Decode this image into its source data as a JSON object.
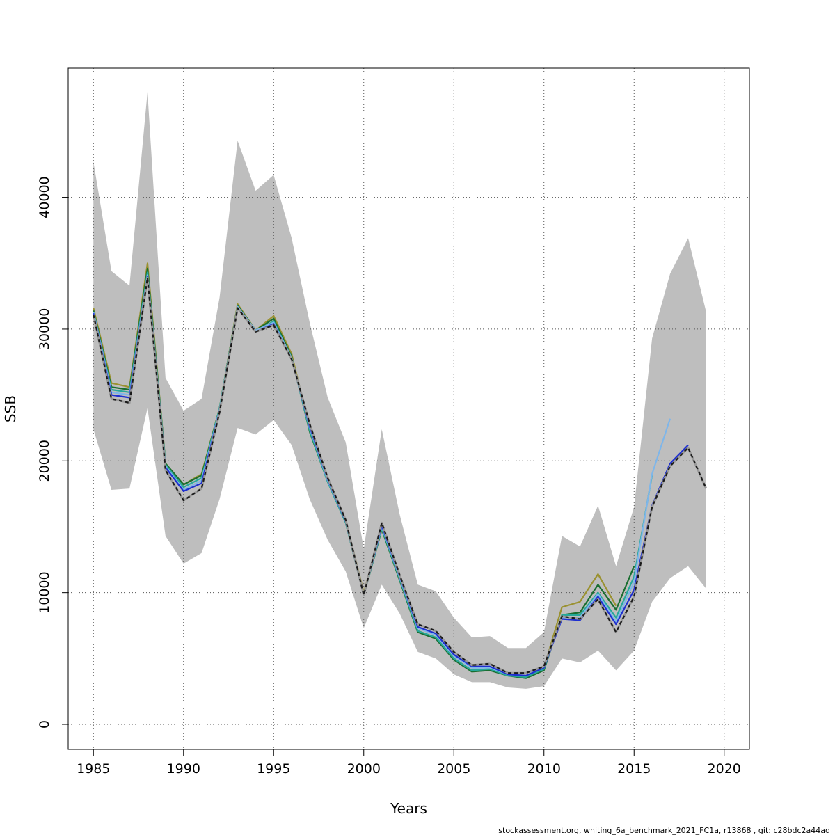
{
  "chart_data": {
    "type": "line",
    "xlabel": "Years",
    "ylabel": "SSB",
    "xlim": [
      1983.6,
      2021.4
    ],
    "ylim": [
      -1900,
      49800
    ],
    "xticks": [
      1985,
      1990,
      1995,
      2000,
      2005,
      2010,
      2015,
      2020
    ],
    "yticks": [
      0,
      10000,
      20000,
      30000,
      40000
    ],
    "grid": true,
    "band": {
      "x": [
        1985,
        1986,
        1987,
        1988,
        1989,
        1990,
        1991,
        1992,
        1993,
        1994,
        1995,
        1996,
        1997,
        1998,
        1999,
        2000,
        2001,
        2002,
        2003,
        2004,
        2005,
        2006,
        2007,
        2008,
        2009,
        2010,
        2011,
        2012,
        2013,
        2014,
        2015,
        2016,
        2017,
        2018,
        2019
      ],
      "lower": [
        22400,
        17800,
        17900,
        24000,
        14300,
        12200,
        13000,
        17100,
        22500,
        22000,
        23100,
        21200,
        17100,
        14000,
        11600,
        7300,
        10600,
        8400,
        5500,
        5000,
        3800,
        3200,
        3200,
        2800,
        2700,
        2900,
        5000,
        4700,
        5600,
        4100,
        5600,
        9300,
        11100,
        12000,
        10300
      ],
      "upper": [
        42700,
        34400,
        33300,
        48000,
        26300,
        23800,
        24700,
        32400,
        44300,
        40500,
        41700,
        36900,
        30500,
        24800,
        21400,
        13300,
        22400,
        15900,
        10600,
        10100,
        8100,
        6600,
        6700,
        5800,
        5800,
        7000,
        14300,
        13500,
        16600,
        12000,
        16500,
        29300,
        34200,
        36900,
        31300
      ],
      "color": "#bebebe"
    },
    "series": [
      {
        "color": "#1a1a1a",
        "dashed": true,
        "x": [
          1985,
          1986,
          1987,
          1988,
          1989,
          1990,
          1991,
          1992,
          1993,
          1994,
          1995,
          1996,
          1997,
          1998,
          1999,
          2000,
          2001,
          2002,
          2003,
          2004,
          2005,
          2006,
          2007,
          2008,
          2009,
          2010,
          2011,
          2012,
          2013,
          2014,
          2015,
          2016,
          2017,
          2018,
          2019
        ],
        "values": [
          31100,
          24700,
          24400,
          33900,
          19300,
          17000,
          17900,
          23700,
          31600,
          29800,
          30300,
          27700,
          22800,
          18700,
          15500,
          9800,
          15300,
          11300,
          7600,
          7100,
          5500,
          4500,
          4600,
          3900,
          3900,
          4400,
          8200,
          8000,
          9500,
          7000,
          9700,
          16500,
          19600,
          21000,
          17900
        ]
      },
      {
        "color": "#1e2fd0",
        "x": [
          1985,
          1986,
          1987,
          1988,
          1989,
          1990,
          1991,
          1992,
          1993,
          1994,
          1995,
          1996,
          1997,
          1998,
          1999,
          2000,
          2001,
          2002,
          2003,
          2004,
          2005,
          2006,
          2007,
          2008,
          2009,
          2010,
          2011,
          2012,
          2013,
          2014,
          2015,
          2016,
          2017,
          2018
        ],
        "values": [
          31200,
          25000,
          24800,
          34000,
          19500,
          17700,
          18300,
          23800,
          31600,
          29800,
          30400,
          27700,
          22600,
          18600,
          15400,
          9800,
          15100,
          11200,
          7400,
          6900,
          5300,
          4400,
          4400,
          3800,
          3700,
          4300,
          8000,
          7900,
          9700,
          7600,
          10200,
          16600,
          19800,
          21200
        ]
      },
      {
        "color": "#7eb6ea",
        "x": [
          1985,
          1986,
          1987,
          1988,
          1989,
          1990,
          1991,
          1992,
          1993,
          1994,
          1995,
          1996,
          1997,
          1998,
          1999,
          2000,
          2001,
          2002,
          2003,
          2004,
          2005,
          2006,
          2007,
          2008,
          2009,
          2010,
          2011,
          2012,
          2013,
          2014,
          2015,
          2016,
          2017
        ],
        "values": [
          31300,
          25200,
          25000,
          34100,
          19600,
          17800,
          18500,
          23900,
          31700,
          29900,
          30500,
          27800,
          22500,
          18500,
          15400,
          9800,
          15000,
          11100,
          7300,
          6800,
          5200,
          4300,
          4300,
          3800,
          3700,
          4300,
          8100,
          8100,
          9900,
          7800,
          10800,
          19000,
          23200
        ]
      },
      {
        "color": "#26a89a",
        "x": [
          1985,
          1986,
          1987,
          1988,
          1989,
          1990,
          1991,
          1992,
          1993,
          1994,
          1995,
          1996,
          1997,
          1998,
          1999,
          2000,
          2001,
          2002,
          2003,
          2004,
          2005,
          2006,
          2007,
          2008,
          2009,
          2010,
          2011,
          2012,
          2013,
          2014,
          2015,
          2016
        ],
        "values": [
          31300,
          25400,
          25200,
          34300,
          19700,
          18000,
          18700,
          24000,
          31700,
          29800,
          30600,
          27800,
          22300,
          18400,
          15300,
          9800,
          14900,
          11000,
          7100,
          6600,
          5000,
          4100,
          4200,
          3700,
          3600,
          4200,
          8300,
          8300,
          10000,
          8100,
          11200,
          18900
        ]
      },
      {
        "color": "#1a6e30",
        "x": [
          1985,
          1986,
          1987,
          1988,
          1989,
          1990,
          1991,
          1992,
          1993,
          1994,
          1995,
          1996,
          1997,
          1998,
          1999,
          2000,
          2001,
          2002,
          2003,
          2004,
          2005,
          2006,
          2007,
          2008,
          2009,
          2010,
          2011,
          2012,
          2013,
          2014,
          2015
        ],
        "values": [
          31400,
          25600,
          25400,
          34600,
          19800,
          18200,
          18900,
          24000,
          31800,
          29900,
          30800,
          27900,
          22200,
          18400,
          15300,
          9800,
          14800,
          10900,
          7000,
          6500,
          4900,
          4000,
          4100,
          3700,
          3500,
          4100,
          8300,
          8500,
          10600,
          8700,
          12000
        ]
      },
      {
        "color": "#9a9130",
        "x": [
          1985,
          1986,
          1987,
          1988,
          1989,
          1990,
          1991,
          1992,
          1993,
          1994,
          1995,
          1996,
          1997,
          1998,
          1999,
          2000,
          2001,
          2002,
          2003,
          2004,
          2005,
          2006,
          2007,
          2008,
          2009,
          2010,
          2011,
          2012,
          2013,
          2014
        ],
        "values": [
          31600,
          25900,
          25600,
          35000,
          19800,
          18200,
          19000,
          24000,
          31900,
          29900,
          31000,
          28100,
          22400,
          18600,
          15500,
          10000,
          15000,
          11000,
          7100,
          6600,
          5000,
          4100,
          4200,
          3800,
          3700,
          4300,
          8900,
          9300,
          11400,
          9000
        ]
      }
    ]
  },
  "footer": {
    "text": "stockassessment.org, whiting_6a_benchmark_2021_FC1a, r13868 , git: c28bdc2a44ad"
  }
}
